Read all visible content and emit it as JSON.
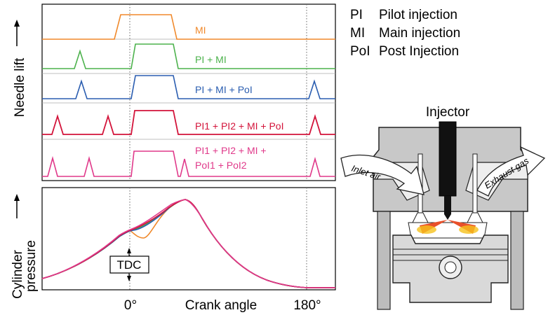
{
  "y_labels": {
    "needle_lift": "Needle lift",
    "cylinder_line1": "Cylinder",
    "cylinder_line2": "pressure"
  },
  "x_labels": {
    "zero": "0°",
    "crank_angle": "Crank angle",
    "one_eighty": "180°",
    "tdc": "TDC"
  },
  "legend": [
    {
      "abbr": "PI",
      "text": "Pilot injection"
    },
    {
      "abbr": "MI",
      "text": "Main injection"
    },
    {
      "abbr": "PoI",
      "text": "Post Injection"
    }
  ],
  "traces": [
    {
      "label": "MI",
      "color": "#f0892b"
    },
    {
      "label": "PI + MI",
      "color": "#4cb24c"
    },
    {
      "label": "PI + MI + PoI",
      "color": "#2a5db0"
    },
    {
      "label": "PI1 + PI2 + MI + PoI",
      "color": "#d3133a"
    },
    {
      "label_line1": "PI1 + PI2 + MI +",
      "label_line2": "PoI1 + PoI2",
      "color": "#e0398a"
    }
  ],
  "engine": {
    "injector": "Injector",
    "inlet_air": "Inlet air",
    "exhaust_gas": "Exhaust gas"
  }
}
